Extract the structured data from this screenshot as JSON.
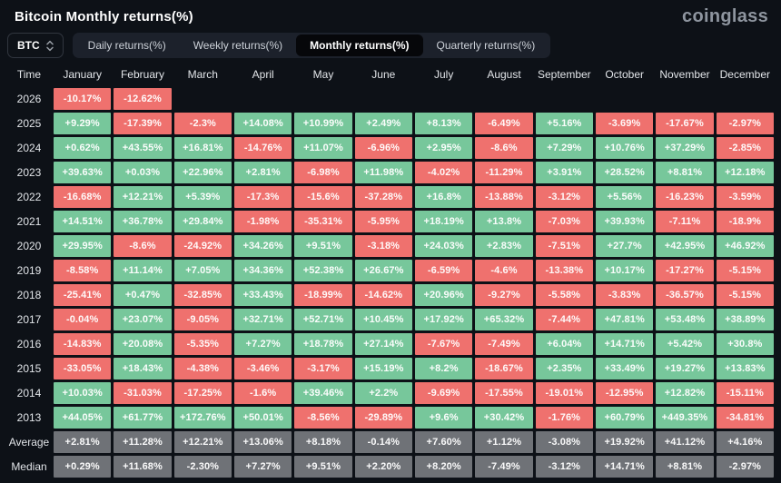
{
  "page": {
    "title": "Bitcoin Monthly returns(%)",
    "logo": "coinglass"
  },
  "toolbar": {
    "symbol_select": {
      "label": "BTC"
    },
    "tabs": [
      {
        "label": "Daily returns(%)",
        "active": false
      },
      {
        "label": "Weekly returns(%)",
        "active": false
      },
      {
        "label": "Monthly returns(%)",
        "active": true
      },
      {
        "label": "Quarterly returns(%)",
        "active": false
      }
    ]
  },
  "chart_data": {
    "type": "heatmap",
    "title": "Bitcoin Monthly returns(%)",
    "colors": {
      "positive": "#77c79b",
      "negative": "#ef716e",
      "summary": "#6f7277",
      "background": "#0d1117"
    },
    "columns": [
      "Time",
      "January",
      "February",
      "March",
      "April",
      "May",
      "June",
      "July",
      "August",
      "September",
      "October",
      "November",
      "December"
    ],
    "rows": [
      {
        "label": "2026",
        "kind": "year",
        "values": [
          "-10.17%",
          "-12.62%",
          "",
          "",
          "",
          "",
          "",
          "",
          "",
          "",
          "",
          ""
        ]
      },
      {
        "label": "2025",
        "kind": "year",
        "values": [
          "+9.29%",
          "-17.39%",
          "-2.3%",
          "+14.08%",
          "+10.99%",
          "+2.49%",
          "+8.13%",
          "-6.49%",
          "+5.16%",
          "-3.69%",
          "-17.67%",
          "-2.97%"
        ]
      },
      {
        "label": "2024",
        "kind": "year",
        "values": [
          "+0.62%",
          "+43.55%",
          "+16.81%",
          "-14.76%",
          "+11.07%",
          "-6.96%",
          "+2.95%",
          "-8.6%",
          "+7.29%",
          "+10.76%",
          "+37.29%",
          "-2.85%"
        ]
      },
      {
        "label": "2023",
        "kind": "year",
        "values": [
          "+39.63%",
          "+0.03%",
          "+22.96%",
          "+2.81%",
          "-6.98%",
          "+11.98%",
          "-4.02%",
          "-11.29%",
          "+3.91%",
          "+28.52%",
          "+8.81%",
          "+12.18%"
        ]
      },
      {
        "label": "2022",
        "kind": "year",
        "values": [
          "-16.68%",
          "+12.21%",
          "+5.39%",
          "-17.3%",
          "-15.6%",
          "-37.28%",
          "+16.8%",
          "-13.88%",
          "-3.12%",
          "+5.56%",
          "-16.23%",
          "-3.59%"
        ]
      },
      {
        "label": "2021",
        "kind": "year",
        "values": [
          "+14.51%",
          "+36.78%",
          "+29.84%",
          "-1.98%",
          "-35.31%",
          "-5.95%",
          "+18.19%",
          "+13.8%",
          "-7.03%",
          "+39.93%",
          "-7.11%",
          "-18.9%"
        ]
      },
      {
        "label": "2020",
        "kind": "year",
        "values": [
          "+29.95%",
          "-8.6%",
          "-24.92%",
          "+34.26%",
          "+9.51%",
          "-3.18%",
          "+24.03%",
          "+2.83%",
          "-7.51%",
          "+27.7%",
          "+42.95%",
          "+46.92%"
        ]
      },
      {
        "label": "2019",
        "kind": "year",
        "values": [
          "-8.58%",
          "+11.14%",
          "+7.05%",
          "+34.36%",
          "+52.38%",
          "+26.67%",
          "-6.59%",
          "-4.6%",
          "-13.38%",
          "+10.17%",
          "-17.27%",
          "-5.15%"
        ]
      },
      {
        "label": "2018",
        "kind": "year",
        "values": [
          "-25.41%",
          "+0.47%",
          "-32.85%",
          "+33.43%",
          "-18.99%",
          "-14.62%",
          "+20.96%",
          "-9.27%",
          "-5.58%",
          "-3.83%",
          "-36.57%",
          "-5.15%"
        ]
      },
      {
        "label": "2017",
        "kind": "year",
        "values": [
          "-0.04%",
          "+23.07%",
          "-9.05%",
          "+32.71%",
          "+52.71%",
          "+10.45%",
          "+17.92%",
          "+65.32%",
          "-7.44%",
          "+47.81%",
          "+53.48%",
          "+38.89%"
        ]
      },
      {
        "label": "2016",
        "kind": "year",
        "values": [
          "-14.83%",
          "+20.08%",
          "-5.35%",
          "+7.27%",
          "+18.78%",
          "+27.14%",
          "-7.67%",
          "-7.49%",
          "+6.04%",
          "+14.71%",
          "+5.42%",
          "+30.8%"
        ]
      },
      {
        "label": "2015",
        "kind": "year",
        "values": [
          "-33.05%",
          "+18.43%",
          "-4.38%",
          "-3.46%",
          "-3.17%",
          "+15.19%",
          "+8.2%",
          "-18.67%",
          "+2.35%",
          "+33.49%",
          "+19.27%",
          "+13.83%"
        ]
      },
      {
        "label": "2014",
        "kind": "year",
        "values": [
          "+10.03%",
          "-31.03%",
          "-17.25%",
          "-1.6%",
          "+39.46%",
          "+2.2%",
          "-9.69%",
          "-17.55%",
          "-19.01%",
          "-12.95%",
          "+12.82%",
          "-15.11%"
        ]
      },
      {
        "label": "2013",
        "kind": "year",
        "values": [
          "+44.05%",
          "+61.77%",
          "+172.76%",
          "+50.01%",
          "-8.56%",
          "-29.89%",
          "+9.6%",
          "+30.42%",
          "-1.76%",
          "+60.79%",
          "+449.35%",
          "-34.81%"
        ]
      },
      {
        "label": "Average",
        "kind": "summary",
        "values": [
          "+2.81%",
          "+11.28%",
          "+12.21%",
          "+13.06%",
          "+8.18%",
          "-0.14%",
          "+7.60%",
          "+1.12%",
          "-3.08%",
          "+19.92%",
          "+41.12%",
          "+4.16%"
        ]
      },
      {
        "label": "Median",
        "kind": "summary",
        "values": [
          "+0.29%",
          "+11.68%",
          "-2.30%",
          "+7.27%",
          "+9.51%",
          "+2.20%",
          "+8.20%",
          "-7.49%",
          "-3.12%",
          "+14.71%",
          "+8.81%",
          "-2.97%"
        ]
      }
    ]
  }
}
